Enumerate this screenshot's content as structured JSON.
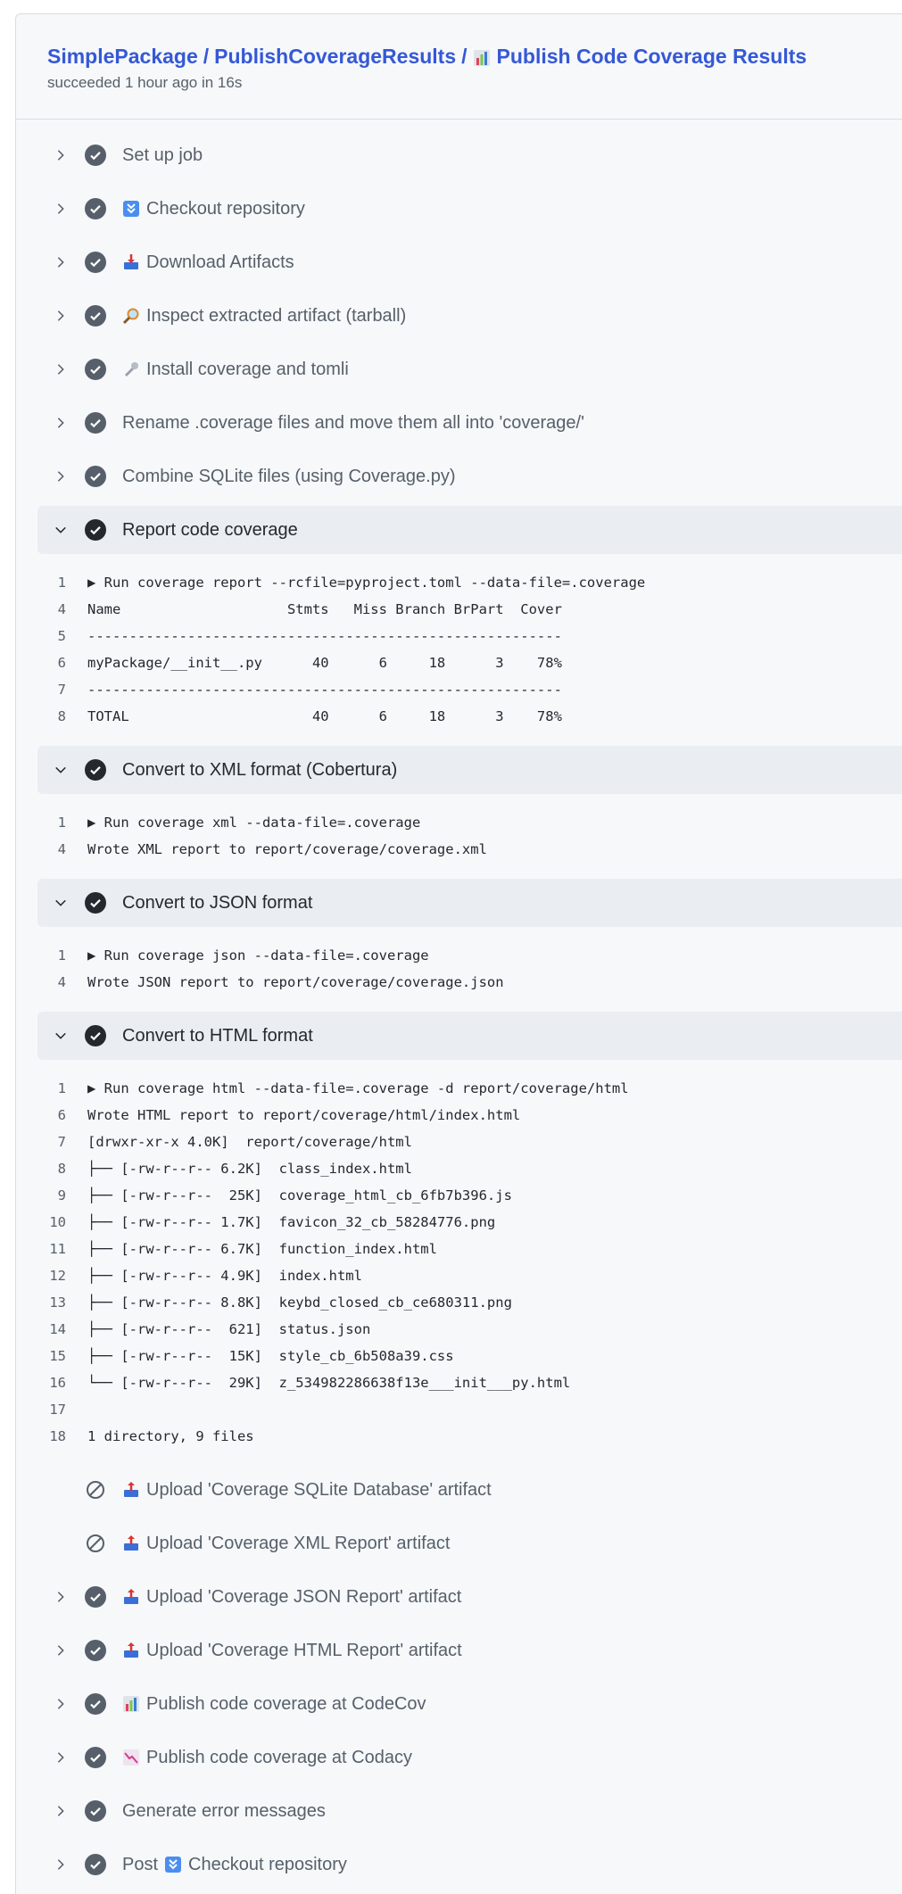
{
  "header": {
    "breadcrumb": [
      "SimplePackage",
      "PublishCoverageResults"
    ],
    "separator": "/",
    "title_icon": "bar-chart-emoji",
    "title": "Publish Code Coverage Results",
    "subtitle": "succeeded 1 hour ago in 16s"
  },
  "colors": {
    "link": "#3558d6",
    "text": "#57606a",
    "panel": "#f6f8fa",
    "expanded_row": "#eaeef2"
  },
  "steps": [
    {
      "label": "Set up job",
      "icon": null,
      "status": "success",
      "expanded": false
    },
    {
      "label": "Checkout repository",
      "icon": "double-down-arrow-emoji",
      "status": "success",
      "expanded": false
    },
    {
      "label": "Download Artifacts",
      "icon": "inbox-tray-emoji",
      "status": "success",
      "expanded": false
    },
    {
      "label": "Inspect extracted artifact (tarball)",
      "icon": "magnifier-emoji",
      "status": "success",
      "expanded": false
    },
    {
      "label": "Install coverage and tomli",
      "icon": "wrench-emoji",
      "status": "success",
      "expanded": false
    },
    {
      "label": "Rename .coverage files and move them all into 'coverage/'",
      "icon": null,
      "status": "success",
      "expanded": false
    },
    {
      "label": "Combine SQLite files (using Coverage.py)",
      "icon": null,
      "status": "success",
      "expanded": false
    },
    {
      "label": "Report code coverage",
      "icon": null,
      "status": "success",
      "expanded": true,
      "log": [
        {
          "n": "1",
          "text": "▶ Run coverage report --rcfile=pyproject.toml --data-file=.coverage"
        },
        {
          "n": "4",
          "text": "Name                    Stmts   Miss Branch BrPart  Cover"
        },
        {
          "n": "5",
          "text": "---------------------------------------------------------"
        },
        {
          "n": "6",
          "text": "myPackage/__init__.py      40      6     18      3    78%"
        },
        {
          "n": "7",
          "text": "---------------------------------------------------------"
        },
        {
          "n": "8",
          "text": "TOTAL                      40      6     18      3    78%"
        }
      ]
    },
    {
      "label": "Convert to XML format (Cobertura)",
      "icon": null,
      "status": "success",
      "expanded": true,
      "log": [
        {
          "n": "1",
          "text": "▶ Run coverage xml --data-file=.coverage"
        },
        {
          "n": "4",
          "text": "Wrote XML report to report/coverage/coverage.xml"
        }
      ]
    },
    {
      "label": "Convert to JSON format",
      "icon": null,
      "status": "success",
      "expanded": true,
      "log": [
        {
          "n": "1",
          "text": "▶ Run coverage json --data-file=.coverage"
        },
        {
          "n": "4",
          "text": "Wrote JSON report to report/coverage/coverage.json"
        }
      ]
    },
    {
      "label": "Convert to HTML format",
      "icon": null,
      "status": "success",
      "expanded": true,
      "log": [
        {
          "n": "1",
          "text": "▶ Run coverage html --data-file=.coverage -d report/coverage/html"
        },
        {
          "n": "6",
          "text": "Wrote HTML report to report/coverage/html/index.html"
        },
        {
          "n": "7",
          "text": "[drwxr-xr-x 4.0K]  report/coverage/html"
        },
        {
          "n": "8",
          "text": "├── [-rw-r--r-- 6.2K]  class_index.html"
        },
        {
          "n": "9",
          "text": "├── [-rw-r--r--  25K]  coverage_html_cb_6fb7b396.js"
        },
        {
          "n": "10",
          "text": "├── [-rw-r--r-- 1.7K]  favicon_32_cb_58284776.png"
        },
        {
          "n": "11",
          "text": "├── [-rw-r--r-- 6.7K]  function_index.html"
        },
        {
          "n": "12",
          "text": "├── [-rw-r--r-- 4.9K]  index.html"
        },
        {
          "n": "13",
          "text": "├── [-rw-r--r-- 8.8K]  keybd_closed_cb_ce680311.png"
        },
        {
          "n": "14",
          "text": "├── [-rw-r--r--  621]  status.json"
        },
        {
          "n": "15",
          "text": "├── [-rw-r--r--  15K]  style_cb_6b508a39.css"
        },
        {
          "n": "16",
          "text": "└── [-rw-r--r--  29K]  z_534982286638f13e___init___py.html"
        },
        {
          "n": "17",
          "text": ""
        },
        {
          "n": "18",
          "text": "1 directory, 9 files"
        }
      ]
    },
    {
      "label": "Upload 'Coverage SQLite Database' artifact",
      "icon": "outbox-tray-emoji",
      "status": "skipped",
      "expanded": false
    },
    {
      "label": "Upload 'Coverage XML Report' artifact",
      "icon": "outbox-tray-emoji",
      "status": "skipped",
      "expanded": false
    },
    {
      "label": "Upload 'Coverage JSON Report' artifact",
      "icon": "outbox-tray-emoji",
      "status": "success",
      "expanded": false
    },
    {
      "label": "Upload 'Coverage HTML Report' artifact",
      "icon": "outbox-tray-emoji",
      "status": "success",
      "expanded": false
    },
    {
      "label": "Publish code coverage at CodeCov",
      "icon": "bar-chart-emoji",
      "status": "success",
      "expanded": false
    },
    {
      "label": "Publish code coverage at Codacy",
      "icon": "chart-decreasing-emoji",
      "status": "success",
      "expanded": false
    },
    {
      "label": "Generate error messages",
      "icon": null,
      "status": "success",
      "expanded": false
    },
    {
      "prefix": "Post",
      "label": "Checkout repository",
      "icon": "double-down-arrow-emoji",
      "status": "success",
      "expanded": false
    }
  ]
}
